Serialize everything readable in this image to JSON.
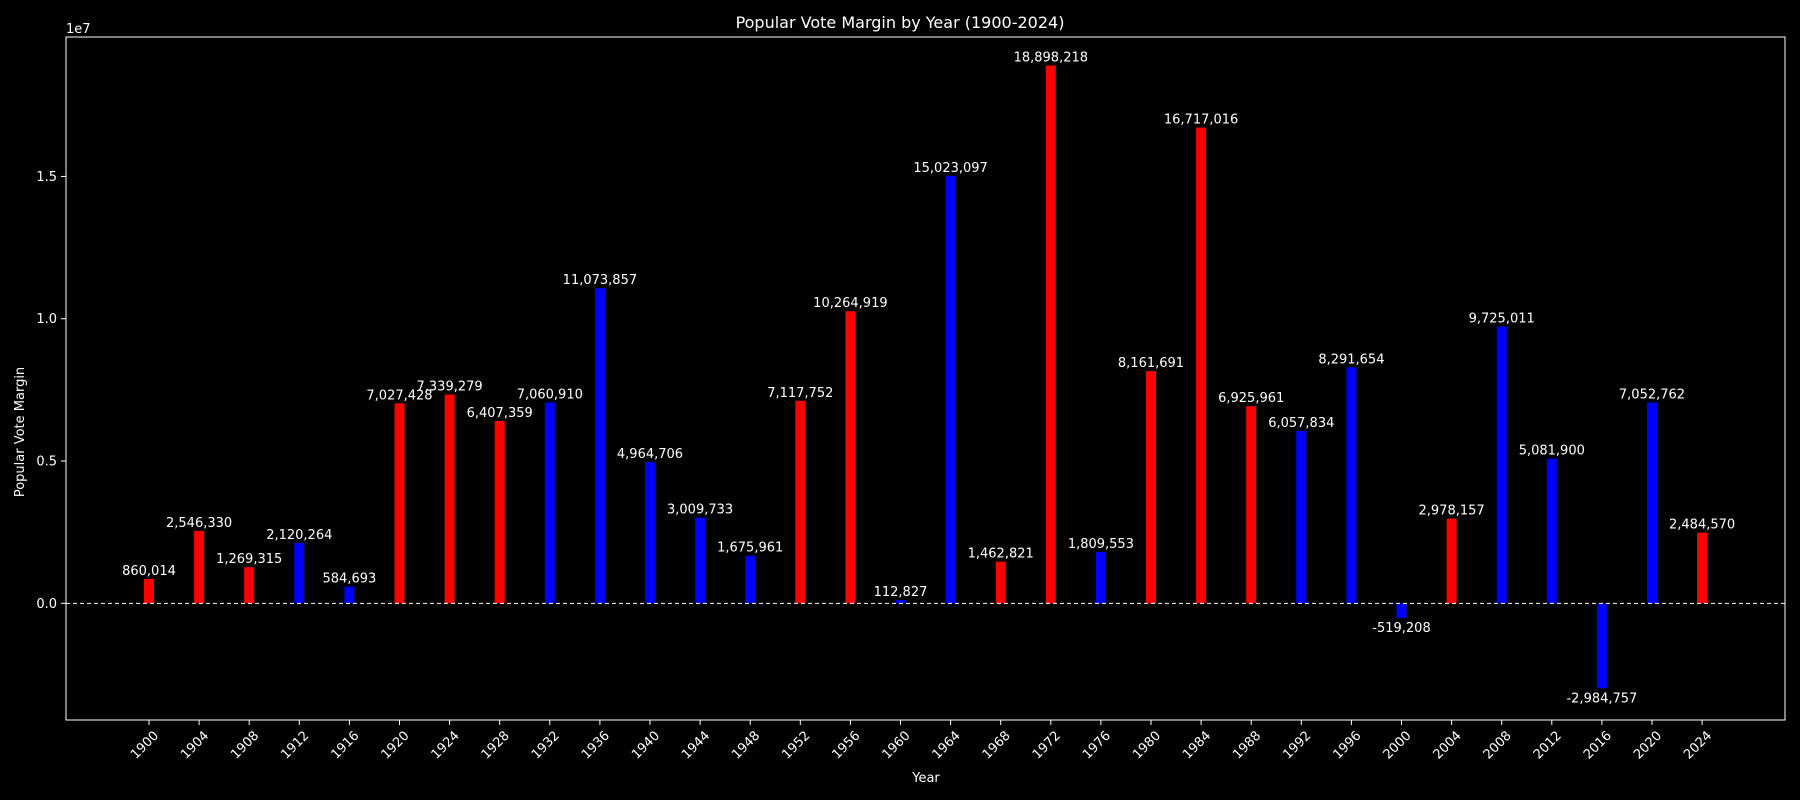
{
  "chart_data": {
    "type": "bar",
    "title": "Popular Vote Margin by Year (1900-2024)",
    "xlabel": "Year",
    "ylabel": "Popular Vote Margin",
    "offset_label": "1e7",
    "ylim": [
      -4100000,
      19900000
    ],
    "yticks": [
      0,
      5000000,
      10000000,
      15000000
    ],
    "ytick_labels": [
      "0.0",
      "0.5",
      "1.0",
      "1.5"
    ],
    "zero_line": true,
    "grid": false,
    "legend": "none",
    "colors": {
      "red": "#ff0000",
      "blue": "#0000ff",
      "background": "#000000",
      "foreground": "#ffffff"
    },
    "categories": [
      "1900",
      "1904",
      "1908",
      "1912",
      "1916",
      "1920",
      "1924",
      "1928",
      "1932",
      "1936",
      "1940",
      "1944",
      "1948",
      "1952",
      "1956",
      "1960",
      "1964",
      "1968",
      "1972",
      "1976",
      "1980",
      "1984",
      "1988",
      "1992",
      "1996",
      "2000",
      "2004",
      "2008",
      "2012",
      "2016",
      "2020",
      "2024"
    ],
    "values": [
      860014,
      2546330,
      1269315,
      2120264,
      584693,
      7027428,
      7339279,
      6407359,
      7060910,
      11073857,
      4964706,
      3009733,
      1675961,
      7117752,
      10264919,
      112827,
      15023097,
      1462821,
      18898218,
      1809553,
      8161691,
      16717016,
      6925961,
      6057834,
      8291654,
      -519208,
      2978157,
      9725011,
      5081900,
      -2984757,
      7052762,
      2484570
    ],
    "bar_colors": [
      "red",
      "red",
      "red",
      "blue",
      "blue",
      "red",
      "red",
      "red",
      "blue",
      "blue",
      "blue",
      "blue",
      "blue",
      "red",
      "red",
      "blue",
      "blue",
      "red",
      "red",
      "blue",
      "red",
      "red",
      "red",
      "blue",
      "blue",
      "blue",
      "red",
      "blue",
      "blue",
      "blue",
      "blue",
      "red"
    ],
    "labels": [
      "860,014",
      "2,546,330",
      "1,269,315",
      "2,120,264",
      "584,693",
      "7,027,428",
      "7,339,279",
      "6,407,359",
      "7,060,910",
      "11,073,857",
      "4,964,706",
      "3,009,733",
      "1,675,961",
      "7,117,752",
      "10,264,919",
      "112,827",
      "15,023,097",
      "1,462,821",
      "18,898,218",
      "1,809,553",
      "8,161,691",
      "16,717,016",
      "6,925,961",
      "6,057,834",
      "8,291,654",
      "-519,208",
      "2,978,157",
      "9,725,011",
      "5,081,900",
      "-2,984,757",
      "7,052,762",
      "2,484,570"
    ]
  }
}
